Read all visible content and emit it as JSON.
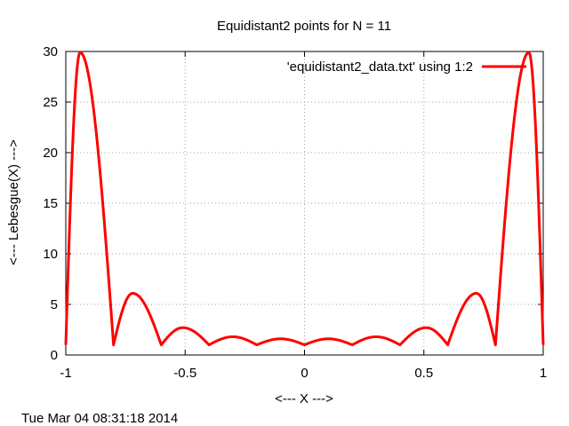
{
  "chart_data": {
    "type": "line",
    "title": "Equidistant2 points for N = 11",
    "xlabel": "<--- X --->",
    "ylabel": "<--- Lebesgue(X) --->",
    "xlim": [
      -1,
      1
    ],
    "ylim": [
      0,
      30
    ],
    "xticks": [
      -1,
      -0.5,
      0,
      0.5,
      1
    ],
    "xtick_labels": [
      "-1",
      "-0.5",
      "0",
      "0.5",
      "1"
    ],
    "yticks": [
      0,
      5,
      10,
      15,
      20,
      25,
      30
    ],
    "ytick_labels": [
      "0",
      "5",
      "10",
      "15",
      "20",
      "25",
      "30"
    ],
    "grid": true,
    "legend_position": "top-right",
    "series": [
      {
        "name": "'equidistant2_data.txt' using 1:2",
        "color": "#ff0000",
        "nodes": [
          -1,
          -0.8,
          -0.6,
          -0.4,
          -0.2,
          0,
          0.2,
          0.4,
          0.6,
          0.8,
          1
        ],
        "peaks": [
          {
            "x": -0.94,
            "y": 29.9
          },
          {
            "x": -0.72,
            "y": 6.1
          },
          {
            "x": -0.51,
            "y": 2.7
          },
          {
            "x": -0.3,
            "y": 1.8
          },
          {
            "x": -0.1,
            "y": 1.6
          },
          {
            "x": 0.1,
            "y": 1.6
          },
          {
            "x": 0.3,
            "y": 1.8
          },
          {
            "x": 0.51,
            "y": 2.7
          },
          {
            "x": 0.72,
            "y": 6.1
          },
          {
            "x": 0.94,
            "y": 29.9
          }
        ],
        "min_value": 1
      }
    ]
  },
  "footer": {
    "timestamp": "Tue Mar 04 08:31:18 2014"
  }
}
